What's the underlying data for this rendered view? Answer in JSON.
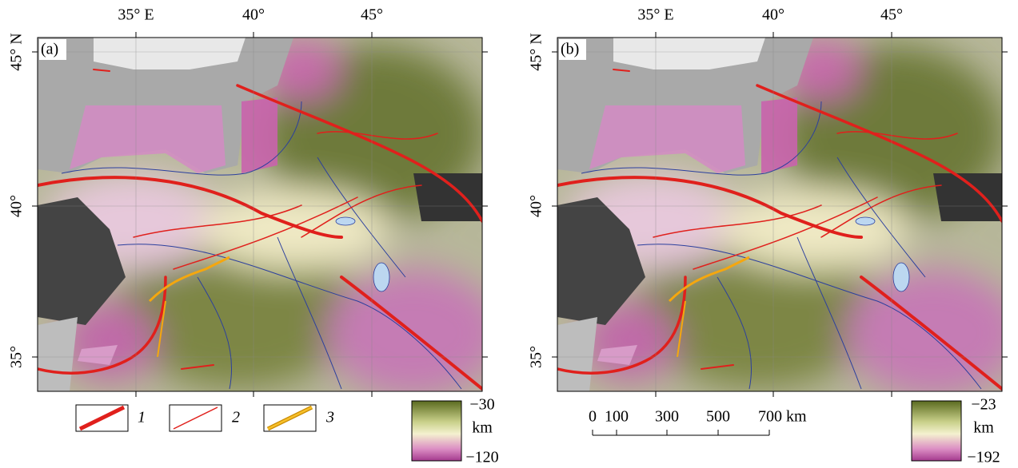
{
  "panels": [
    {
      "label": "(a)",
      "x_labels": [
        "35° E",
        "40°",
        "45°"
      ],
      "y_labels": [
        "45° N",
        "40°",
        "35°"
      ],
      "colorbar": {
        "top": "−30",
        "unit": "km",
        "bottom": "−120"
      }
    },
    {
      "label": "(b)",
      "x_labels": [
        "35° E",
        "40°",
        "45°"
      ],
      "y_labels": [
        "45° N",
        "40°",
        "35°"
      ],
      "colorbar": {
        "top": "−23",
        "unit": "km",
        "bottom": "−192"
      }
    }
  ],
  "legend": [
    "1",
    "2",
    "3"
  ],
  "scale_bar": [
    "0",
    "100",
    "300",
    "500",
    "700 km"
  ]
}
